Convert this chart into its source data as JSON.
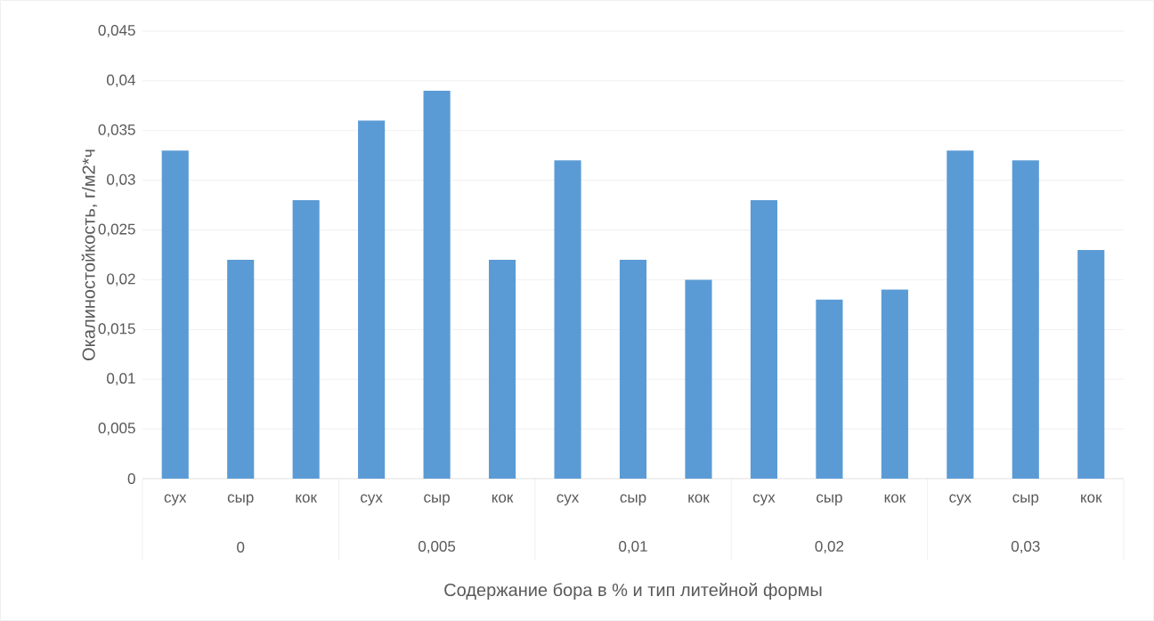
{
  "chart_data": {
    "type": "bar",
    "xlabel": "Содержание бора в % и тип литейной формы",
    "ylabel": "Окалиностойкость, г/м2*ч",
    "categories": [
      "сух",
      "сыр",
      "кок",
      "сух",
      "сыр",
      "кок",
      "сух",
      "сыр",
      "кок",
      "сух",
      "сыр",
      "кок",
      "сух",
      "сыр",
      "кок"
    ],
    "values": [
      0.033,
      0.022,
      0.028,
      0.036,
      0.039,
      0.022,
      0.032,
      0.022,
      0.02,
      0.028,
      0.018,
      0.019,
      0.033,
      0.032,
      0.023
    ],
    "color": "#5b9bd5",
    "annotations": [
      "0",
      "0,005",
      "0,01",
      "0,02",
      "0,03"
    ],
    "ylim": [
      0,
      0.045
    ],
    "yticks": [
      0,
      {
        "value": 0.005,
        "label": "0,005"
      },
      {
        "value": 0.01,
        "label": "0,01"
      },
      {
        "value": 0.015,
        "label": "0,015"
      },
      {
        "value": 0.02,
        "label": "0,02"
      },
      {
        "value": 0.025,
        "label": "0,025"
      },
      {
        "value": 0.03,
        "label": "0,03"
      },
      {
        "value": 0.035,
        "label": "0,035"
      },
      {
        "value": 0.04,
        "label": "0,04"
      },
      {
        "value": 0.045,
        "label": "0,045"
      }
    ],
    "grid": "y"
  }
}
